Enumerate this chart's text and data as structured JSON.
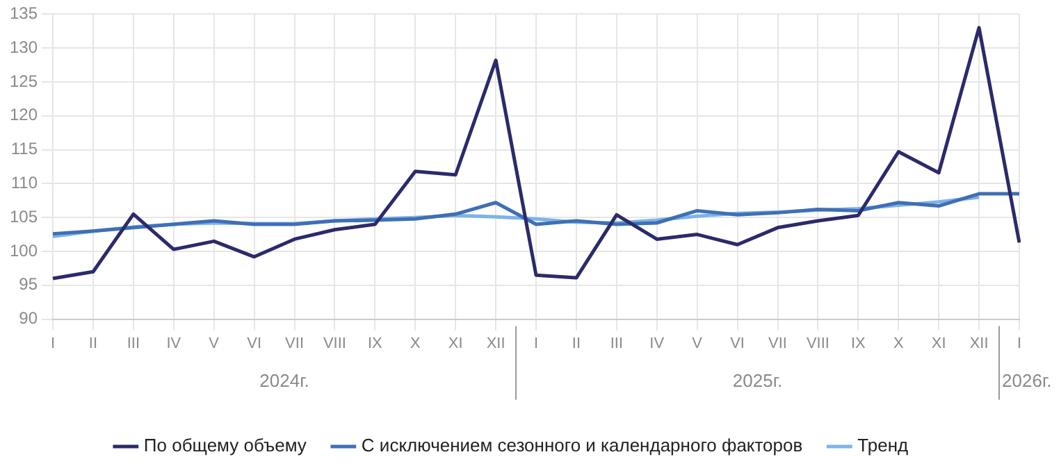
{
  "chart_data": {
    "type": "line",
    "categories": [
      "I",
      "II",
      "III",
      "IV",
      "V",
      "VI",
      "VII",
      "VIII",
      "IX",
      "X",
      "XI",
      "XII",
      "I",
      "II",
      "III",
      "IV",
      "V",
      "VI",
      "VII",
      "VIII",
      "IX",
      "X",
      "XI",
      "XII",
      "I"
    ],
    "series": [
      {
        "name": "По общему объему",
        "color": "#2b2a6b",
        "values": [
          96,
          97,
          105.5,
          100.3,
          101.5,
          99.2,
          101.8,
          103.2,
          104,
          111.8,
          111.3,
          128.2,
          96.5,
          96.1,
          105.4,
          101.8,
          102.5,
          101,
          103.5,
          104.5,
          105.3,
          114.7,
          111.6,
          133,
          101.3
        ]
      },
      {
        "name": "С исключением сезонного и календарного факторов",
        "color": "#3f6fb5",
        "values": [
          102.6,
          103,
          103.5,
          104,
          104.5,
          104,
          104,
          104.5,
          104.6,
          104.8,
          105.5,
          107.2,
          104,
          104.5,
          104,
          104.2,
          106,
          105.4,
          105.7,
          106.2,
          106,
          107.2,
          106.7,
          108.5,
          108.5
        ]
      },
      {
        "name": "Тренд",
        "color": "#7db3e8",
        "values": [
          102.2,
          103,
          103.6,
          104,
          104.2,
          104.1,
          104.1,
          104.5,
          104.8,
          105,
          105.3,
          105.1,
          104.8,
          104.3,
          104.2,
          104.6,
          105.2,
          105.6,
          105.8,
          106.1,
          106.3,
          106.8,
          107.3,
          108,
          null
        ]
      }
    ],
    "annotations": [
      "2024г.",
      "2025г.",
      "2026г."
    ],
    "ylim": [
      90,
      135
    ],
    "yticks": [
      90,
      95,
      100,
      105,
      110,
      115,
      120,
      125,
      130,
      135
    ],
    "grid": true,
    "legend": "bottom",
    "marker": "none",
    "line_style": "solid"
  }
}
